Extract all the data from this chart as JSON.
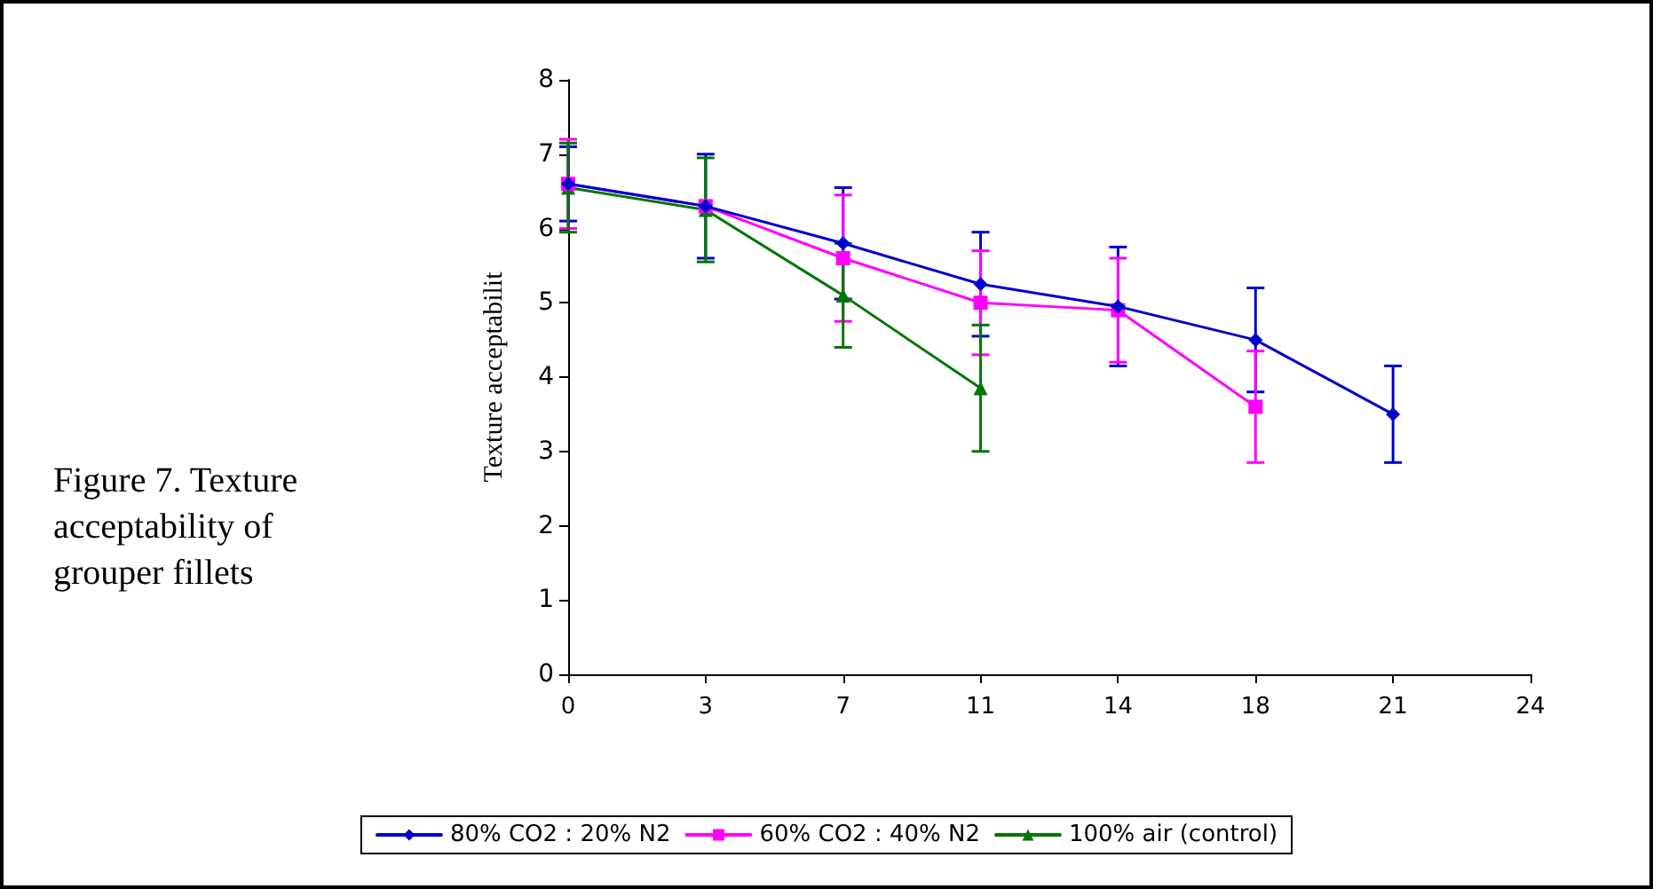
{
  "chart_data": {
    "type": "line",
    "ylabel": "Texture acceptabilit",
    "annotations": [
      "Figure 7. Texture acceptability of grouper fillets"
    ],
    "categories": [
      "0",
      "3",
      "7",
      "11",
      "14",
      "18",
      "21",
      "24"
    ],
    "ylim": [
      0,
      8
    ],
    "yticks": [
      0,
      1,
      2,
      3,
      4,
      5,
      6,
      7,
      8
    ],
    "grid": false,
    "legend": "bottom",
    "line_style": "solid",
    "series": [
      {
        "name": "80% CO2 : 20% N2",
        "color": "#0000cc",
        "marker": "diamond",
        "values": [
          6.6,
          6.3,
          5.8,
          5.25,
          4.95,
          4.5,
          3.5,
          null
        ],
        "errors": [
          0.5,
          0.7,
          0.75,
          0.7,
          0.8,
          0.7,
          0.65,
          null
        ]
      },
      {
        "name": "60% CO2 : 40% N2",
        "color": "#ff00ff",
        "marker": "square",
        "values": [
          6.6,
          6.3,
          5.6,
          5.0,
          4.9,
          3.6,
          null,
          null
        ],
        "errors": [
          0.6,
          null,
          0.85,
          0.7,
          0.7,
          0.75,
          null,
          null
        ]
      },
      {
        "name": "100% air (control)",
        "color": "#007700",
        "marker": "triangle",
        "values": [
          6.55,
          6.25,
          5.1,
          3.85,
          null,
          null,
          null,
          null
        ],
        "errors": [
          0.6,
          0.7,
          0.7,
          0.85,
          null,
          null,
          null,
          null
        ]
      }
    ]
  }
}
